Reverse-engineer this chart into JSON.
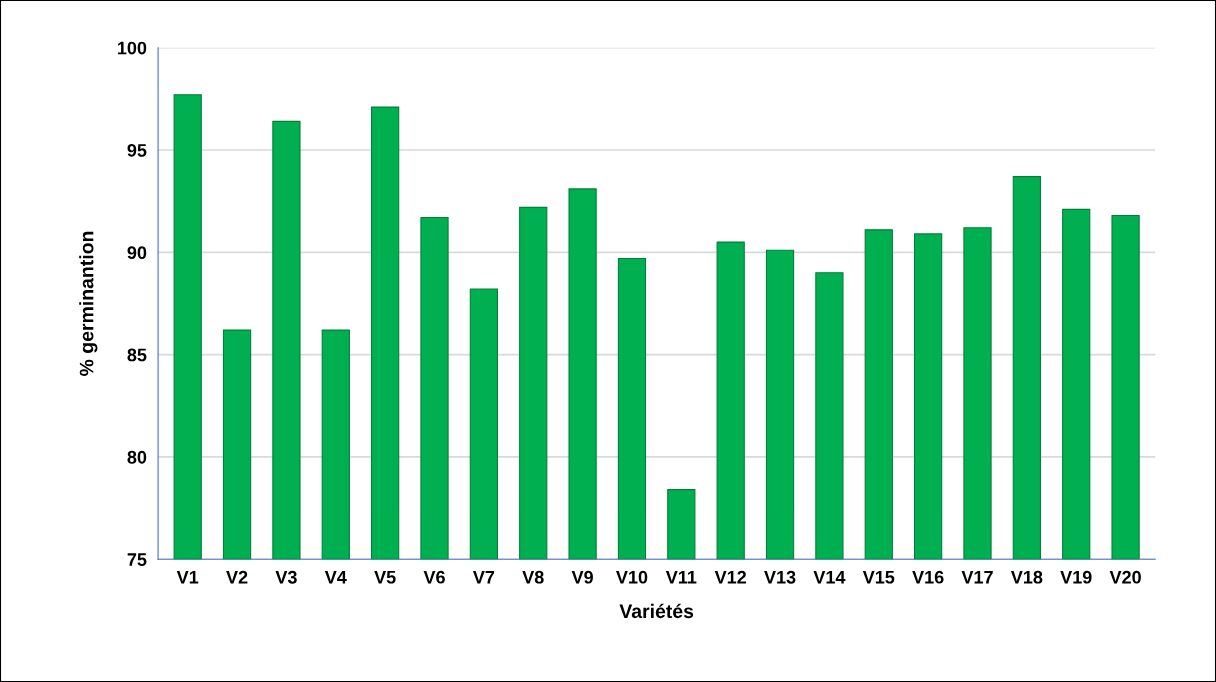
{
  "chart_data": {
    "type": "bar",
    "xlabel": "Variétés",
    "ylabel": "% germinantion",
    "categories": [
      "V1",
      "V2",
      "V3",
      "V4",
      "V5",
      "V6",
      "V7",
      "V8",
      "V9",
      "V10",
      "V11",
      "V12",
      "V13",
      "V14",
      "V15",
      "V16",
      "V17",
      "V18",
      "V19",
      "V20"
    ],
    "values": [
      97.7,
      86.2,
      96.4,
      86.2,
      97.1,
      91.7,
      88.2,
      92.2,
      93.1,
      89.7,
      78.4,
      90.5,
      90.1,
      89.0,
      91.1,
      90.9,
      91.2,
      93.7,
      92.1,
      91.8
    ],
    "color": "#00b050",
    "ylim": [
      75,
      100
    ],
    "yticks": [
      75,
      80,
      85,
      90,
      95,
      100
    ],
    "grid": "y"
  }
}
